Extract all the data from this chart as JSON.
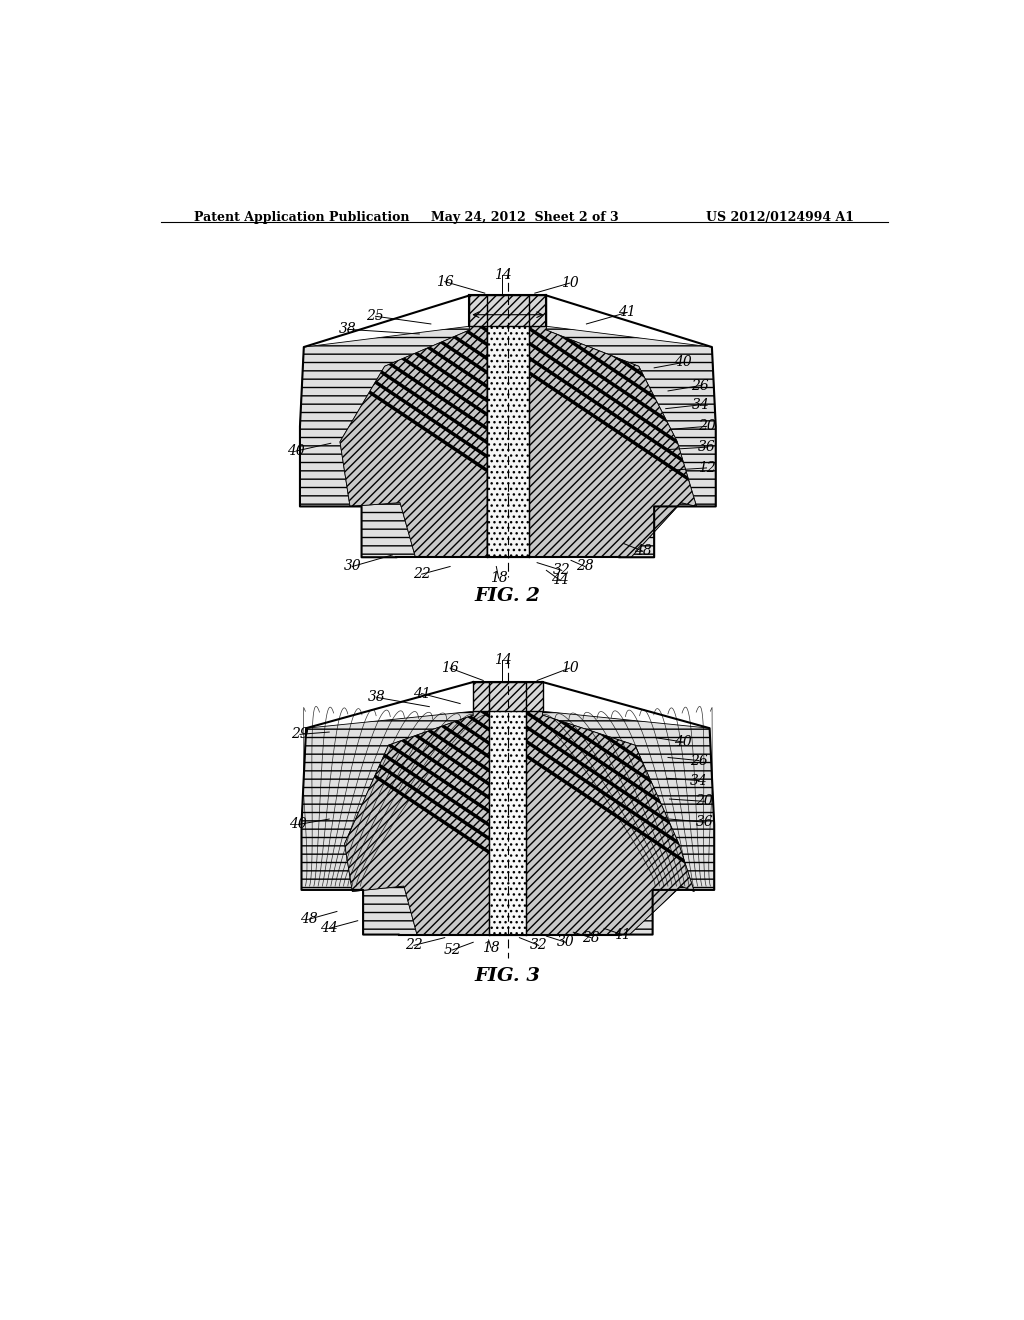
{
  "header_left": "Patent Application Publication",
  "header_center": "May 24, 2012  Sheet 2 of 3",
  "header_right": "US 2012/0124994 A1",
  "fig2_caption": "FIG. 2",
  "fig3_caption": "FIG. 3",
  "bg_color": "#ffffff",
  "line_color": "#000000"
}
